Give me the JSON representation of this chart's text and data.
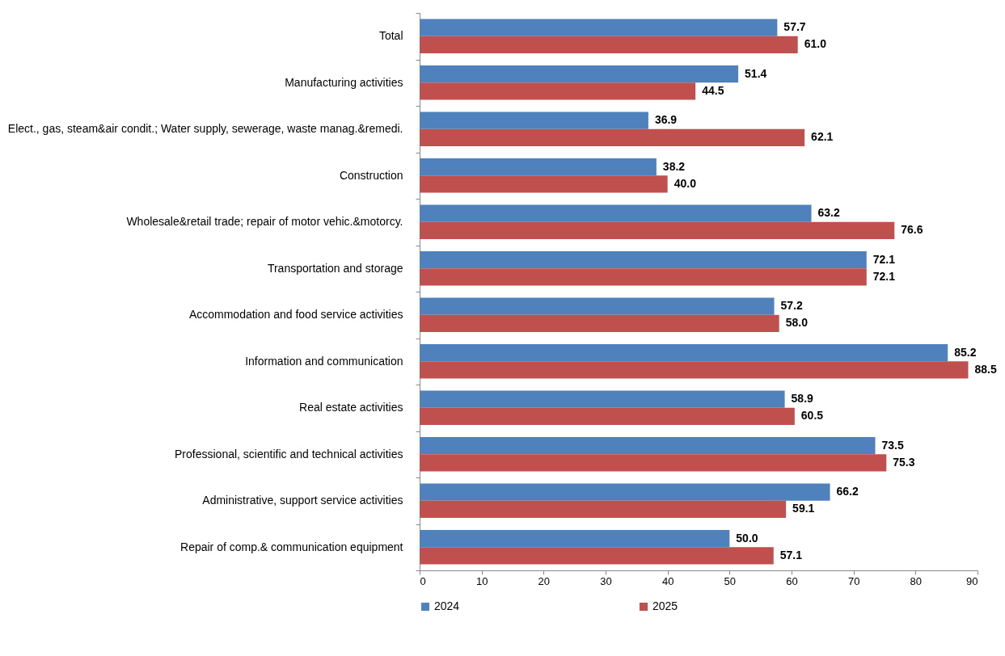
{
  "chart_data": {
    "type": "bar",
    "orientation": "horizontal",
    "categories": [
      "Total",
      "Manufacturing activities",
      "Elect., gas, steam&air condit.; Water supply, sewerage, waste manag.&remedi.",
      "Construction",
      "Wholesale&retail trade; repair of motor vehic.&motorcy.",
      "Transportation and storage",
      "Accommodation and food service activities",
      "Information and communication",
      "Real estate activities",
      "Professional, scientific and technical activities",
      "Administrative, support service activities",
      "Repair of comp.& communication equipment"
    ],
    "series": [
      {
        "name": "2024",
        "color": "#4f81bd",
        "values": [
          57.7,
          51.4,
          36.9,
          38.2,
          63.2,
          72.1,
          57.2,
          85.2,
          58.9,
          73.5,
          66.2,
          50.0
        ],
        "value_labels": [
          "57.7",
          "51.4",
          "36.9",
          "38.2",
          "63.2",
          "72.1",
          "57.2",
          "85.2",
          "58.9",
          "73.5",
          "66.2",
          "50.0"
        ]
      },
      {
        "name": "2025",
        "color": "#c0504d",
        "values": [
          61.0,
          44.5,
          62.1,
          40.0,
          76.6,
          72.1,
          58.0,
          88.5,
          60.5,
          75.3,
          59.1,
          57.1
        ],
        "value_labels": [
          "61.0",
          "44.5",
          "62.1",
          "40.0",
          "76.6",
          "72.1",
          "58.0",
          "88.5",
          "60.5",
          "75.3",
          "59.1",
          "57.1"
        ]
      }
    ],
    "xlim": [
      0,
      90
    ],
    "xticks": [
      0,
      10,
      20,
      30,
      40,
      50,
      60,
      70,
      80,
      90
    ],
    "grid": false,
    "legend": "bottom"
  }
}
